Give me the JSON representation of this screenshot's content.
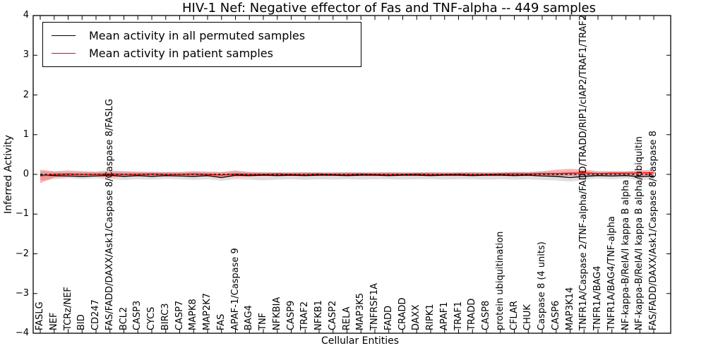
{
  "figure": {
    "title": "HIV-1 Nef: Negative effector of Fas and TNF-alpha -- 449 samples",
    "xlabel": "Cellular Entities",
    "ylabel": "Inferred Activity"
  },
  "legend": {
    "position": "upper left",
    "items": [
      {
        "label": "Mean activity in all permuted samples",
        "color": "#000000"
      },
      {
        "label": "Mean activity in patient samples",
        "color": "#ff0000"
      }
    ]
  },
  "chart_data": {
    "type": "line",
    "title": "HIV-1 Nef: Negative effector of Fas and TNF-alpha -- 449 samples",
    "xlabel": "Cellular Entities",
    "ylabel": "Inferred Activity",
    "ylim": [
      -4,
      4
    ],
    "yticks": [
      -4,
      -3,
      -2,
      -1,
      0,
      1,
      2,
      3,
      4
    ],
    "grid": false,
    "legend_position": "upper left",
    "zero_line": {
      "y": 0,
      "style": "dashed",
      "color": "#000000"
    },
    "categories": [
      "FASLG",
      "NEF",
      "TCRz/NEF",
      "BID",
      "CD247",
      "FAS/FADD/DAXX/Ask1/Caspase 8/Caspase 8/FASLG",
      "BCL2",
      "CASP3",
      "CYCS",
      "BIRC3",
      "CASP7",
      "MAPK8",
      "MAP2K7",
      "FAS",
      "APAF-1/Caspase 9",
      "BAG4",
      "TNF",
      "NFKBIA",
      "CASP9",
      "TRAF2",
      "NFKB1",
      "CASP2",
      "RELA",
      "MAP3K5",
      "TNFRSF1A",
      "FADD",
      "CRADD",
      "DAXX",
      "RIPK1",
      "APAF1",
      "TRAF1",
      "TRADD",
      "CASP8",
      "protein ubiquitination",
      "CFLAR",
      "CHUK",
      "Caspase 8 (4 units)",
      "CASP6",
      "MAP3K14",
      "TNFR1A/Caspase 2/TNF-alpha/FADD/TRADD/RIP1/cIAP2/TRAF1/TRAF2",
      "TNFR1A/BAG4",
      "TNFR1A/BAG4/TNF-alpha",
      "NF-kappa-B/RelA/I kappa B alpha",
      "NF-kappa-B/RelA/I kappa B alpha/ubiquitin",
      "FAS/FADD/DAXX/Ask1/Caspase 8/Caspase 8"
    ],
    "series": [
      {
        "name": "Mean activity in all permuted samples",
        "color": "#000000",
        "band_color": "rgba(0,0,0,0.13)",
        "values": [
          -0.02,
          -0.03,
          -0.04,
          -0.05,
          -0.04,
          -0.02,
          -0.05,
          -0.03,
          -0.05,
          -0.03,
          -0.04,
          -0.05,
          -0.03,
          -0.08,
          -0.02,
          -0.03,
          -0.02,
          -0.03,
          -0.02,
          -0.03,
          -0.02,
          -0.02,
          -0.03,
          -0.02,
          -0.02,
          -0.03,
          -0.02,
          -0.02,
          -0.03,
          -0.02,
          -0.02,
          -0.03,
          -0.02,
          -0.02,
          -0.03,
          -0.02,
          -0.04,
          -0.05,
          -0.08,
          -0.05,
          -0.03,
          -0.04,
          -0.03,
          -0.06,
          -0.04
        ],
        "band_low": [
          -0.15,
          -0.12,
          -0.1,
          -0.12,
          -0.1,
          -0.12,
          -0.14,
          -0.12,
          -0.13,
          -0.11,
          -0.12,
          -0.14,
          -0.12,
          -0.16,
          -0.12,
          -0.13,
          -0.15,
          -0.13,
          -0.12,
          -0.14,
          -0.12,
          -0.13,
          -0.12,
          -0.13,
          -0.12,
          -0.12,
          -0.13,
          -0.12,
          -0.12,
          -0.13,
          -0.12,
          -0.12,
          -0.13,
          -0.12,
          -0.13,
          -0.12,
          -0.14,
          -0.15,
          -0.18,
          -0.14,
          -0.1,
          -0.12,
          -0.1,
          -0.15,
          -0.12
        ],
        "band_high": [
          0.08,
          0.06,
          0.05,
          0.06,
          0.05,
          0.06,
          0.06,
          0.05,
          0.06,
          0.05,
          0.05,
          0.06,
          0.05,
          0.05,
          0.06,
          0.05,
          0.06,
          0.05,
          0.05,
          0.06,
          0.05,
          0.05,
          0.06,
          0.05,
          0.05,
          0.06,
          0.05,
          0.05,
          0.06,
          0.05,
          0.05,
          0.06,
          0.05,
          0.05,
          0.06,
          0.05,
          0.06,
          0.06,
          0.06,
          0.07,
          0.06,
          0.06,
          0.06,
          0.06,
          0.06
        ]
      },
      {
        "name": "Mean activity in patient samples",
        "color": "#ff0000",
        "band_color": "rgba(255,0,0,0.30)",
        "values": [
          -0.04,
          0.0,
          0.01,
          0.0,
          0.0,
          0.01,
          0.0,
          0.0,
          0.01,
          0.0,
          0.0,
          0.01,
          0.0,
          -0.02,
          0.01,
          0.0,
          0.0,
          0.01,
          0.0,
          0.0,
          0.01,
          0.0,
          0.0,
          0.01,
          0.0,
          0.0,
          0.0,
          0.01,
          0.0,
          0.0,
          0.01,
          0.0,
          0.0,
          0.01,
          0.01,
          0.01,
          0.02,
          0.02,
          0.03,
          0.04,
          0.02,
          0.03,
          0.03,
          0.04,
          0.04
        ],
        "band_low": [
          -0.22,
          -0.08,
          -0.06,
          -0.06,
          -0.05,
          -0.08,
          -0.06,
          -0.05,
          -0.05,
          -0.05,
          -0.05,
          -0.06,
          -0.05,
          -0.08,
          -0.06,
          -0.05,
          -0.04,
          -0.04,
          -0.04,
          -0.04,
          -0.04,
          -0.04,
          -0.04,
          -0.04,
          -0.04,
          -0.04,
          -0.04,
          -0.04,
          -0.04,
          -0.04,
          -0.04,
          -0.04,
          -0.04,
          -0.04,
          -0.04,
          -0.04,
          -0.05,
          -0.05,
          -0.04,
          -0.05,
          -0.03,
          -0.03,
          -0.03,
          -0.05,
          -0.06
        ],
        "band_high": [
          0.12,
          0.08,
          0.1,
          0.08,
          0.07,
          0.1,
          0.08,
          0.07,
          0.06,
          0.06,
          0.06,
          0.08,
          0.07,
          0.06,
          0.1,
          0.06,
          0.05,
          0.05,
          0.05,
          0.05,
          0.05,
          0.05,
          0.05,
          0.05,
          0.05,
          0.05,
          0.05,
          0.05,
          0.05,
          0.05,
          0.05,
          0.05,
          0.05,
          0.05,
          0.06,
          0.06,
          0.08,
          0.12,
          0.14,
          0.12,
          0.08,
          0.08,
          0.08,
          0.1,
          0.12
        ]
      }
    ]
  }
}
